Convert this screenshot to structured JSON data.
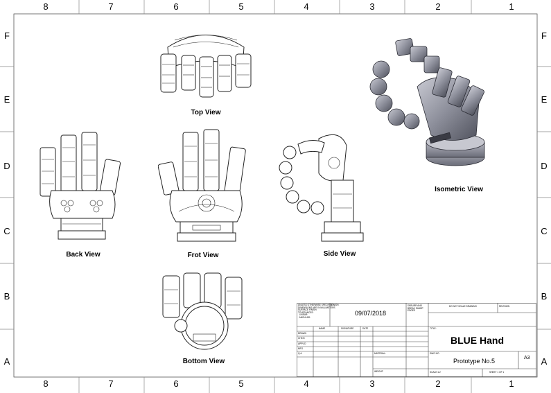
{
  "border": {
    "columns_top": [
      "8",
      "7",
      "6",
      "5",
      "4",
      "3",
      "2",
      "1"
    ],
    "columns_bottom": [
      "8",
      "7",
      "6",
      "5",
      "4",
      "3",
      "2",
      "1"
    ],
    "rows_left": [
      "F",
      "E",
      "D",
      "C",
      "B",
      "A"
    ],
    "rows_right": [
      "F",
      "E",
      "D",
      "C",
      "B",
      "A"
    ]
  },
  "views": {
    "top": "Top View",
    "back": "Back View",
    "front": "Frot View",
    "side": "Side View",
    "bottom": "Bottom View",
    "isometric": "Isometric View"
  },
  "title_block": {
    "tolerance_note": "UNLESS OTHERWISE SPECIFIED:\nDIMENSIONS ARE IN MILLIMETERS\nSURFACE FINISH:\nTOLERANCES:\n  LINEAR:\n  ANGULAR:",
    "finish_label": "FINISH:",
    "date": "09/07/2018",
    "deburr_note": "DEBURR AND\nBREAK SHARP\nEDGES",
    "do_not_scale": "DO NOT SCALE DRAWING",
    "revision_label": "REVISION",
    "col_name": "NAME",
    "col_signature": "SIGNATURE",
    "col_date": "DATE",
    "rows": [
      "DRAWN",
      "CHK'D",
      "APPV'D",
      "MFG",
      "Q.A"
    ],
    "title_label": "TITLE:",
    "title": "BLUE Hand",
    "material_label": "MATERIAL:",
    "weight_label": "WEIGHT:",
    "dwg_no_label": "DWG NO.",
    "dwg_no": "Prototype No.5",
    "size": "A3",
    "scale_label": "SCALE:1:2",
    "sheet_label": "SHEET 1 OF 1"
  }
}
